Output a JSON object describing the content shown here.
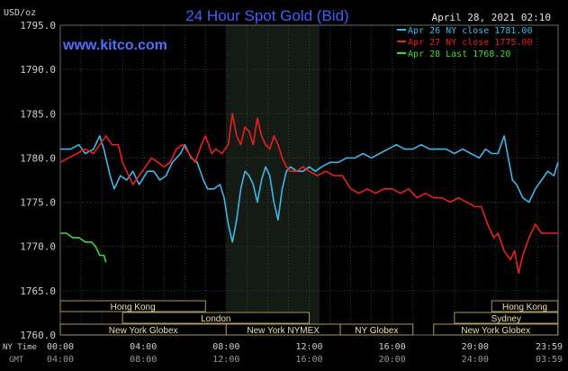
{
  "header": {
    "unit": "USD/oz",
    "title": "24 Hour Spot Gold (Bid)",
    "site": "www.kitco.com",
    "timestamp": "April 28, 2021 02:10"
  },
  "colors": {
    "background": "#000000",
    "title": "#3f5fff",
    "grid": "#3a3a3a",
    "axis_text": "#cfcfcf",
    "session_shade": "#141a14",
    "market_box": "#a89a5a",
    "market_text": "#e8e0b0"
  },
  "axis_labels": {
    "ny_time": "NY Time",
    "gmt": "GMT"
  },
  "chart_data": {
    "type": "line",
    "ylim": [
      1760,
      1795
    ],
    "y_ticks": [
      "1795.0",
      "1790.0",
      "1785.0",
      "1780.0",
      "1775.0",
      "1770.0",
      "1765.0",
      "1760.0"
    ],
    "y_tick_values": [
      1795,
      1790,
      1785,
      1780,
      1775,
      1770,
      1765,
      1760
    ],
    "xlim": [
      0,
      24
    ],
    "x_ticks_ny": [
      "00:00",
      "04:00",
      "08:00",
      "12:00",
      "16:00",
      "20:00",
      "23:59"
    ],
    "x_ticks_gmt": [
      "04:00",
      "08:00",
      "12:00",
      "16:00",
      "20:00",
      "24:00",
      "03:59"
    ],
    "x_tick_hours": [
      0,
      4,
      8,
      12,
      16,
      20,
      24
    ],
    "shaded_session_hours": [
      8.0,
      12.5
    ],
    "legend_position": "top-right",
    "series": [
      {
        "name": "Apr 26 NY close 1781.00",
        "color": "#3fb6e8",
        "points": [
          [
            0.0,
            1781.0
          ],
          [
            0.5,
            1781.0
          ],
          [
            0.9,
            1781.5
          ],
          [
            1.2,
            1780.5
          ],
          [
            1.6,
            1781.0
          ],
          [
            1.9,
            1782.5
          ],
          [
            2.1,
            1781.0
          ],
          [
            2.4,
            1778.0
          ],
          [
            2.6,
            1776.5
          ],
          [
            2.9,
            1778.0
          ],
          [
            3.2,
            1777.5
          ],
          [
            3.5,
            1778.5
          ],
          [
            3.8,
            1777.0
          ],
          [
            4.2,
            1778.5
          ],
          [
            4.5,
            1778.5
          ],
          [
            4.8,
            1777.5
          ],
          [
            5.1,
            1778.0
          ],
          [
            5.4,
            1779.5
          ],
          [
            5.8,
            1780.5
          ],
          [
            6.0,
            1781.5
          ],
          [
            6.3,
            1780.0
          ],
          [
            6.6,
            1779.5
          ],
          [
            6.9,
            1777.5
          ],
          [
            7.1,
            1776.5
          ],
          [
            7.4,
            1776.5
          ],
          [
            7.7,
            1777.0
          ],
          [
            7.9,
            1775.5
          ],
          [
            8.1,
            1772.5
          ],
          [
            8.3,
            1770.5
          ],
          [
            8.5,
            1773.0
          ],
          [
            8.7,
            1776.5
          ],
          [
            8.9,
            1778.5
          ],
          [
            9.1,
            1778.0
          ],
          [
            9.3,
            1777.0
          ],
          [
            9.5,
            1775.0
          ],
          [
            9.7,
            1777.5
          ],
          [
            9.9,
            1779.0
          ],
          [
            10.1,
            1778.0
          ],
          [
            10.3,
            1775.0
          ],
          [
            10.5,
            1773.0
          ],
          [
            10.7,
            1776.5
          ],
          [
            10.9,
            1778.5
          ],
          [
            11.1,
            1779.0
          ],
          [
            11.4,
            1778.5
          ],
          [
            11.7,
            1778.5
          ],
          [
            12.0,
            1779.0
          ],
          [
            12.3,
            1778.5
          ],
          [
            12.6,
            1779.0
          ],
          [
            13.0,
            1779.5
          ],
          [
            13.4,
            1779.5
          ],
          [
            13.8,
            1780.0
          ],
          [
            14.2,
            1780.0
          ],
          [
            14.6,
            1780.5
          ],
          [
            15.0,
            1780.0
          ],
          [
            15.4,
            1780.5
          ],
          [
            15.8,
            1781.0
          ],
          [
            16.2,
            1781.5
          ],
          [
            16.6,
            1781.0
          ],
          [
            17.0,
            1781.0
          ],
          [
            17.4,
            1781.5
          ],
          [
            17.8,
            1781.0
          ],
          [
            18.2,
            1781.0
          ],
          [
            18.6,
            1781.0
          ],
          [
            19.0,
            1780.5
          ],
          [
            19.4,
            1781.0
          ],
          [
            19.8,
            1780.5
          ],
          [
            20.2,
            1780.0
          ],
          [
            20.5,
            1781.0
          ],
          [
            20.8,
            1780.5
          ],
          [
            21.1,
            1780.5
          ],
          [
            21.4,
            1782.5
          ],
          [
            21.6,
            1780.0
          ],
          [
            21.8,
            1777.5
          ],
          [
            22.0,
            1777.0
          ],
          [
            22.3,
            1775.5
          ],
          [
            22.6,
            1775.0
          ],
          [
            22.9,
            1776.5
          ],
          [
            23.2,
            1777.5
          ],
          [
            23.5,
            1778.5
          ],
          [
            23.8,
            1778.0
          ],
          [
            23.99,
            1779.5
          ]
        ]
      },
      {
        "name": "Apr 27 NY close 1775.00",
        "color": "#e82020",
        "points": [
          [
            0.0,
            1779.5
          ],
          [
            0.4,
            1780.0
          ],
          [
            0.8,
            1780.5
          ],
          [
            1.2,
            1781.0
          ],
          [
            1.6,
            1780.5
          ],
          [
            1.9,
            1781.5
          ],
          [
            2.2,
            1782.5
          ],
          [
            2.5,
            1781.5
          ],
          [
            2.8,
            1781.5
          ],
          [
            3.0,
            1779.5
          ],
          [
            3.3,
            1778.0
          ],
          [
            3.5,
            1777.0
          ],
          [
            3.8,
            1778.0
          ],
          [
            4.1,
            1779.0
          ],
          [
            4.4,
            1780.0
          ],
          [
            4.7,
            1779.5
          ],
          [
            5.0,
            1779.0
          ],
          [
            5.3,
            1779.5
          ],
          [
            5.6,
            1781.0
          ],
          [
            5.9,
            1781.5
          ],
          [
            6.2,
            1780.5
          ],
          [
            6.5,
            1779.5
          ],
          [
            6.8,
            1781.5
          ],
          [
            7.0,
            1782.5
          ],
          [
            7.3,
            1780.5
          ],
          [
            7.5,
            1781.0
          ],
          [
            7.8,
            1780.5
          ],
          [
            8.1,
            1781.5
          ],
          [
            8.3,
            1785.0
          ],
          [
            8.5,
            1782.5
          ],
          [
            8.7,
            1781.5
          ],
          [
            8.9,
            1783.5
          ],
          [
            9.1,
            1783.0
          ],
          [
            9.3,
            1781.5
          ],
          [
            9.5,
            1784.5
          ],
          [
            9.7,
            1782.5
          ],
          [
            9.9,
            1781.5
          ],
          [
            10.1,
            1781.0
          ],
          [
            10.3,
            1782.5
          ],
          [
            10.5,
            1781.5
          ],
          [
            10.7,
            1780.0
          ],
          [
            10.9,
            1779.0
          ],
          [
            11.1,
            1778.5
          ],
          [
            11.4,
            1778.5
          ],
          [
            11.7,
            1779.0
          ],
          [
            12.0,
            1778.5
          ],
          [
            12.4,
            1778.0
          ],
          [
            12.8,
            1778.5
          ],
          [
            13.2,
            1778.0
          ],
          [
            13.6,
            1778.0
          ],
          [
            14.0,
            1776.5
          ],
          [
            14.4,
            1776.0
          ],
          [
            14.8,
            1776.5
          ],
          [
            15.2,
            1776.0
          ],
          [
            15.6,
            1776.5
          ],
          [
            16.0,
            1776.5
          ],
          [
            16.4,
            1776.0
          ],
          [
            16.8,
            1776.5
          ],
          [
            17.2,
            1775.5
          ],
          [
            17.6,
            1776.0
          ],
          [
            18.0,
            1775.5
          ],
          [
            18.4,
            1775.5
          ],
          [
            18.8,
            1775.0
          ],
          [
            19.2,
            1775.5
          ],
          [
            19.6,
            1775.0
          ],
          [
            20.0,
            1774.5
          ],
          [
            20.3,
            1774.5
          ],
          [
            20.6,
            1772.5
          ],
          [
            20.9,
            1771.0
          ],
          [
            21.1,
            1771.5
          ],
          [
            21.4,
            1769.5
          ],
          [
            21.7,
            1768.5
          ],
          [
            21.9,
            1769.5
          ],
          [
            22.1,
            1767.0
          ],
          [
            22.3,
            1769.0
          ],
          [
            22.6,
            1771.0
          ],
          [
            22.9,
            1772.5
          ],
          [
            23.2,
            1771.5
          ],
          [
            23.5,
            1771.5
          ],
          [
            23.99,
            1771.5
          ]
        ]
      },
      {
        "name": "Apr 28 Last 1768.20",
        "color": "#3ad83a",
        "points": [
          [
            0.0,
            1771.5
          ],
          [
            0.3,
            1771.5
          ],
          [
            0.6,
            1771.0
          ],
          [
            0.9,
            1771.0
          ],
          [
            1.2,
            1770.5
          ],
          [
            1.5,
            1770.5
          ],
          [
            1.7,
            1770.0
          ],
          [
            1.9,
            1769.0
          ],
          [
            2.1,
            1769.0
          ],
          [
            2.2,
            1768.2
          ]
        ]
      }
    ]
  },
  "markets": [
    {
      "label": "Hong Kong",
      "start": 0.0,
      "end": 7.0,
      "row": 0
    },
    {
      "label": "Hong Kong",
      "start": 20.8,
      "end": 23.99,
      "row": 0
    },
    {
      "label": "London",
      "start": 3.0,
      "end": 12.0,
      "row": 1
    },
    {
      "label": "Sydney",
      "start": 19.0,
      "end": 23.99,
      "row": 1
    },
    {
      "label": "New York Globex",
      "start": 0.0,
      "end": 8.0,
      "row": 2
    },
    {
      "label": "New York NYMEX",
      "start": 8.0,
      "end": 13.5,
      "row": 2
    },
    {
      "label": "NY Globex",
      "start": 13.5,
      "end": 17.0,
      "row": 2
    },
    {
      "label": "New York Globex",
      "start": 18.0,
      "end": 23.99,
      "row": 2
    }
  ]
}
